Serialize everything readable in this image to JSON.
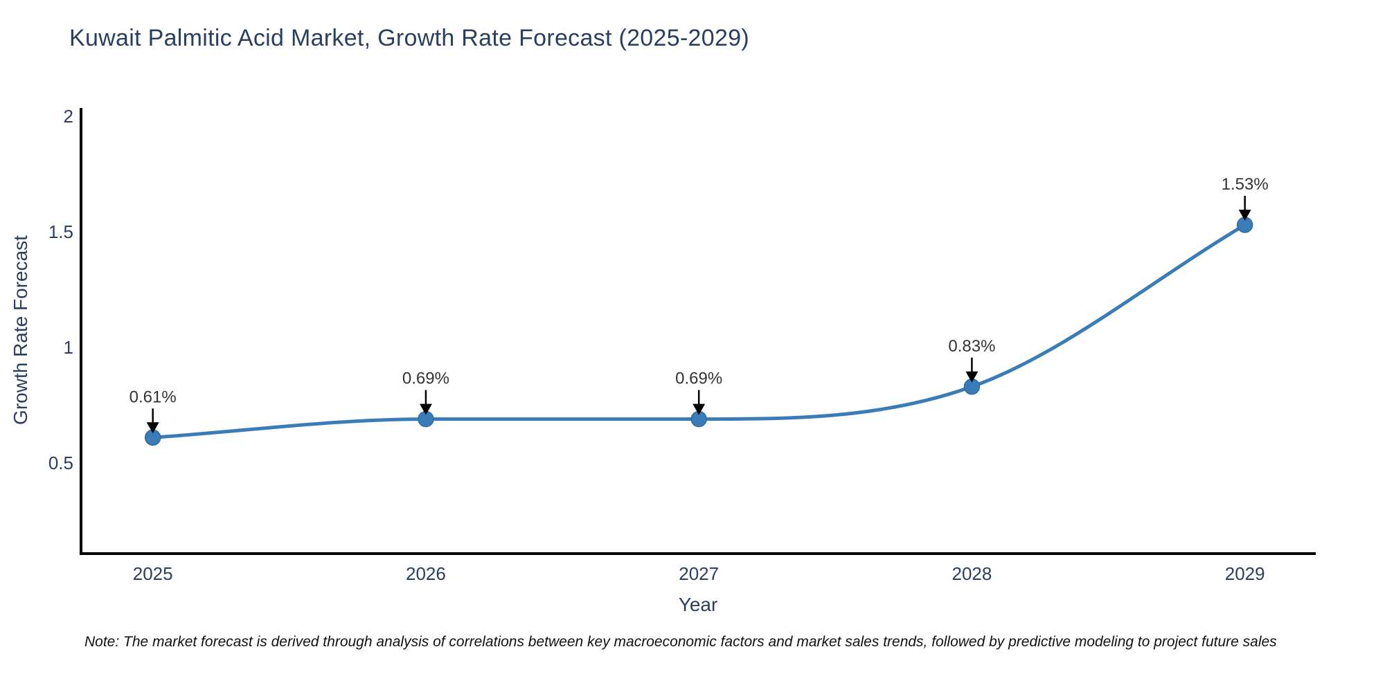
{
  "title": "Kuwait Palmitic Acid Market, Growth Rate Forecast (2025-2029)",
  "note": "Note: The market forecast is derived through analysis of correlations between key macroeconomic factors and market sales trends, followed by predictive modeling to project future sales",
  "chart_data": {
    "type": "line",
    "title": "Kuwait Palmitic Acid Market, Growth Rate Forecast (2025-2029)",
    "xlabel": "Year",
    "ylabel": "Growth Rate Forecast",
    "x": [
      2025,
      2026,
      2027,
      2028,
      2029
    ],
    "values": [
      0.61,
      0.69,
      0.69,
      0.83,
      1.53
    ],
    "point_labels": [
      "0.61%",
      "0.69%",
      "0.69%",
      "0.83%",
      "1.53%"
    ],
    "xticks": [
      2025,
      2026,
      2027,
      2028,
      2029
    ],
    "xtick_labels": [
      "2025",
      "2026",
      "2027",
      "2028",
      "2029"
    ],
    "yticks": [
      0.5,
      1,
      1.5,
      2
    ],
    "ytick_labels": [
      "0.5",
      "1",
      "1.5",
      "2"
    ],
    "xlim": [
      2024.737,
      2029.257
    ],
    "ylim": [
      0.108,
      2.015
    ],
    "grid": false,
    "legend": "none",
    "line_shape": "spline",
    "annotation_arrows": true
  },
  "colors": {
    "line": "#3a7cb8",
    "marker": "#3a7cb8",
    "marker_edge": "#2f6ba3",
    "axis": "#000000",
    "tick_text": "#2a3f5f",
    "axis_title_text": "#2a3f5f",
    "chart_title_text": "#2a3f5f",
    "annotation_text": "#333333",
    "arrow": "#000000",
    "note_text": "#111111",
    "background": "#ffffff"
  }
}
